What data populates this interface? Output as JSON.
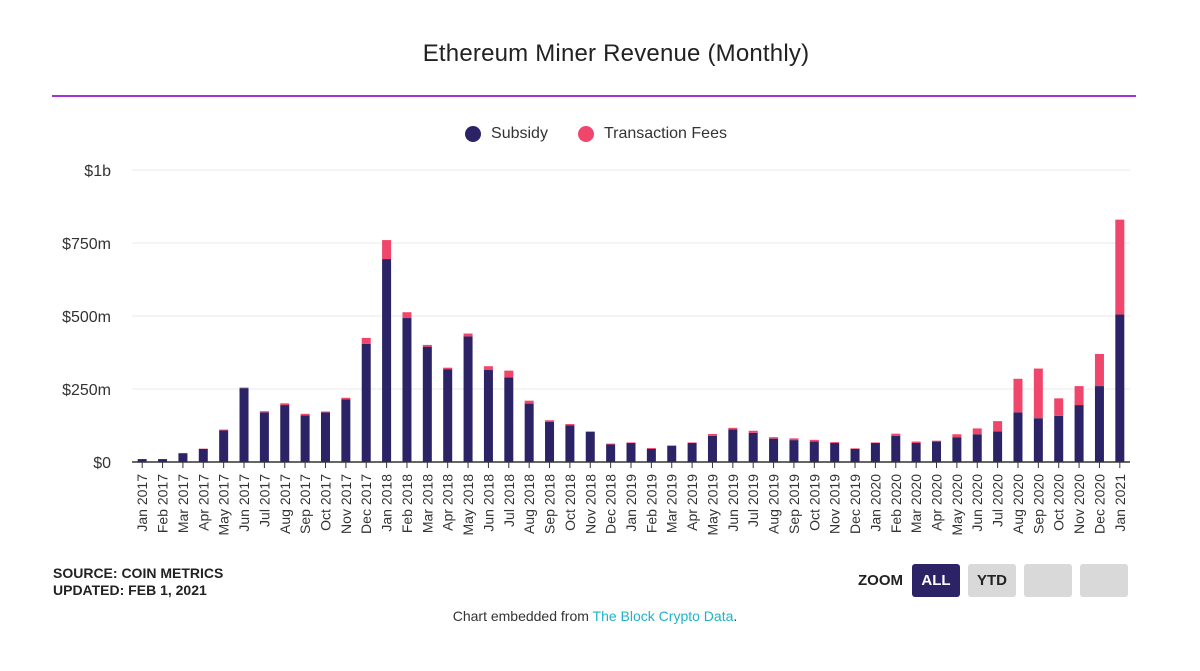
{
  "colors": {
    "subsidy": "#2b2366",
    "fees": "#f0466b",
    "rule": "#a333d6",
    "grid": "#e8e8e8",
    "axis": "#333333",
    "link": "#1fb3c7"
  },
  "header": {
    "title": "Ethereum Miner Revenue (Monthly)"
  },
  "legend": [
    {
      "label": "Subsidy",
      "color": "#2b2366"
    },
    {
      "label": "Transaction Fees",
      "color": "#f0466b"
    }
  ],
  "footer": {
    "source": "SOURCE: COIN METRICS",
    "updated": "UPDATED: FEB 1, 2021",
    "embedded_prefix": "Chart embedded from ",
    "embedded_link": "The Block Crypto Data",
    "embedded_suffix": "."
  },
  "zoom": {
    "label": "ZOOM",
    "buttons": [
      {
        "label": "ALL",
        "active": true
      },
      {
        "label": "YTD",
        "active": false
      },
      {
        "label": "",
        "active": false
      },
      {
        "label": "",
        "active": false
      }
    ]
  },
  "chart_data": {
    "type": "bar",
    "stacked": true,
    "title": "Ethereum Miner Revenue (Monthly)",
    "ylim": [
      0,
      1000
    ],
    "yunit": "millions USD",
    "yticks": [
      {
        "value": 0,
        "label": "$0"
      },
      {
        "value": 250,
        "label": "$250m"
      },
      {
        "value": 500,
        "label": "$500m"
      },
      {
        "value": 750,
        "label": "$750m"
      },
      {
        "value": 1000,
        "label": "$1b"
      }
    ],
    "categories": [
      "Jan 2017",
      "Feb 2017",
      "Mar 2017",
      "Apr 2017",
      "May 2017",
      "Jun 2017",
      "Jul 2017",
      "Aug 2017",
      "Sep 2017",
      "Oct 2017",
      "Nov 2017",
      "Dec 2017",
      "Jan 2018",
      "Feb 2018",
      "Mar 2018",
      "Apr 2018",
      "May 2018",
      "Jun 2018",
      "Jul 2018",
      "Aug 2018",
      "Sep 2018",
      "Oct 2018",
      "Nov 2018",
      "Dec 2018",
      "Jan 2019",
      "Feb 2019",
      "Mar 2019",
      "Apr 2019",
      "May 2019",
      "Jun 2019",
      "Jul 2019",
      "Aug 2019",
      "Sep 2019",
      "Oct 2019",
      "Nov 2019",
      "Dec 2019",
      "Jan 2020",
      "Feb 2020",
      "Mar 2020",
      "Apr 2020",
      "May 2020",
      "Jun 2020",
      "Jul 2020",
      "Aug 2020",
      "Sep 2020",
      "Oct 2020",
      "Nov 2020",
      "Dec 2020",
      "Jan 2021"
    ],
    "series": [
      {
        "name": "Subsidy",
        "color": "#2b2366",
        "values": [
          10,
          10,
          30,
          45,
          108,
          253,
          170,
          195,
          160,
          170,
          215,
          405,
          695,
          493,
          395,
          318,
          430,
          315,
          290,
          200,
          138,
          125,
          103,
          60,
          65,
          45,
          55,
          65,
          90,
          112,
          100,
          80,
          75,
          70,
          65,
          45,
          65,
          90,
          65,
          70,
          85,
          95,
          105,
          170,
          150,
          158,
          195,
          260,
          505
        ]
      },
      {
        "name": "Transaction Fees",
        "color": "#f0466b",
        "values": [
          0,
          0,
          1,
          1,
          3,
          2,
          4,
          6,
          5,
          3,
          5,
          20,
          65,
          20,
          6,
          5,
          10,
          13,
          23,
          10,
          5,
          5,
          2,
          3,
          2,
          3,
          2,
          2,
          6,
          5,
          7,
          5,
          6,
          6,
          3,
          2,
          2,
          7,
          5,
          3,
          10,
          20,
          35,
          115,
          170,
          60,
          65,
          110,
          325
        ]
      }
    ]
  }
}
